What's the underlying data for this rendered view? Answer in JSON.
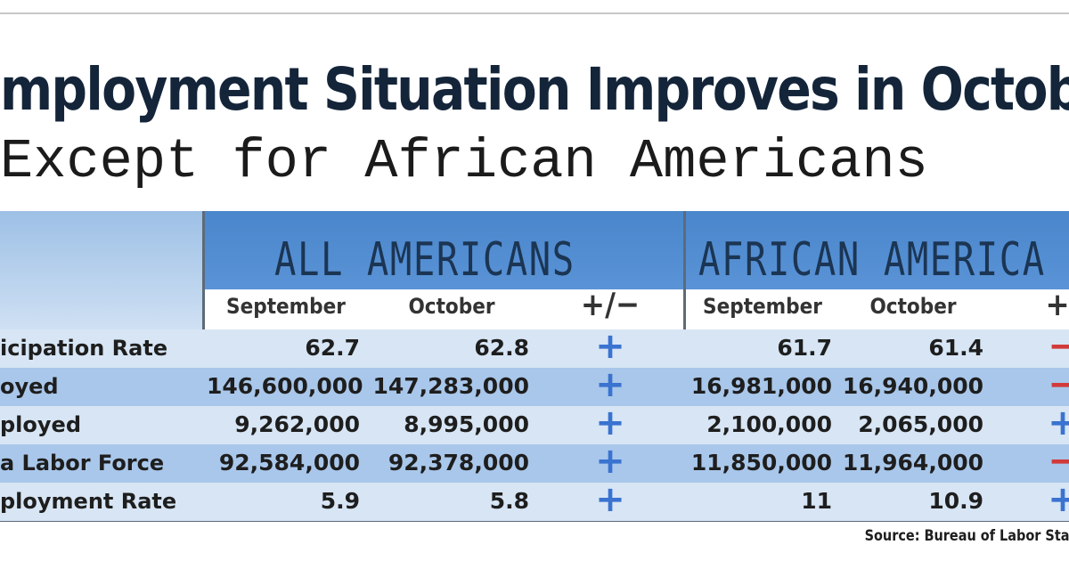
{
  "header": {
    "title": "mployment Situation Improves in Octob",
    "subtitle": "Except for African Americans"
  },
  "table": {
    "groups": [
      "ALL AMERICANS",
      "AFRICAN AMERICA"
    ],
    "columns": [
      "September",
      "October",
      "+/−",
      "September",
      "October",
      "+/"
    ],
    "rows": [
      [
        "icipation Rate",
        "62.7",
        "62.8",
        "+",
        "61.7",
        "61.4",
        "−"
      ],
      [
        "oyed",
        "146,600,000",
        "147,283,000",
        "+",
        "16,981,000",
        "16,940,000",
        "−"
      ],
      [
        "ployed",
        "9,262,000",
        "8,995,000",
        "+",
        "2,100,000",
        "2,065,000",
        "+"
      ],
      [
        "a Labor Force",
        "92,584,000",
        "92,378,000",
        "+",
        "11,850,000",
        "11,964,000",
        "−"
      ],
      [
        "ployment Rate",
        "5.9",
        "5.8",
        "+",
        "11",
        "10.9",
        "+"
      ]
    ]
  },
  "footer": {
    "source": "Source: Bureau of Labor Sta"
  }
}
